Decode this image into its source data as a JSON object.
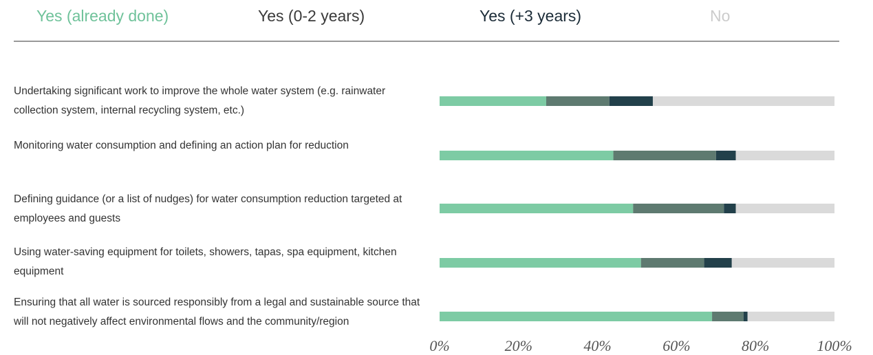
{
  "chart_data": {
    "type": "stacked-bar-horizontal",
    "categories": [
      "Undertaking significant work to improve the whole water system (e.g. rainwater collection system, internal recycling system, etc.)",
      "Monitoring water consumption and defining an action plan for reduction",
      "Defining guidance (or a list of nudges) for water consumption reduction targeted at employees and guests",
      "Using water-saving equipment for toilets, showers, tapas, spa equipment, kitchen equipment",
      "Ensuring that all water is sourced responsibly from a legal and sustainable source that will not negatively affect environmental flows and the community/region"
    ],
    "series": [
      {
        "name": "Yes (already done)",
        "color": "#7dcba4",
        "label_color": "#6fc29a",
        "values": [
          27,
          44,
          49,
          51,
          69
        ]
      },
      {
        "name": "Yes (0-2 years)",
        "color": "#5e7a70",
        "label_color": "#3a3a3a",
        "values": [
          16,
          26,
          23,
          16,
          8
        ]
      },
      {
        "name": "Yes (+3 years)",
        "color": "#22404a",
        "label_color": "#1c2c38",
        "values": [
          11,
          5,
          3,
          7,
          1
        ]
      },
      {
        "name": "No",
        "color": "#dadada",
        "label_color": "#cccccc",
        "values": [
          46,
          25,
          25,
          26,
          22
        ]
      }
    ],
    "xlim": [
      0,
      100
    ],
    "xticks": [
      {
        "value": 0,
        "label": "0%"
      },
      {
        "value": 20,
        "label": "20%"
      },
      {
        "value": 40,
        "label": "40%"
      },
      {
        "value": 60,
        "label": "60%"
      },
      {
        "value": 80,
        "label": "80%"
      },
      {
        "value": 100,
        "label": "100%"
      }
    ]
  }
}
